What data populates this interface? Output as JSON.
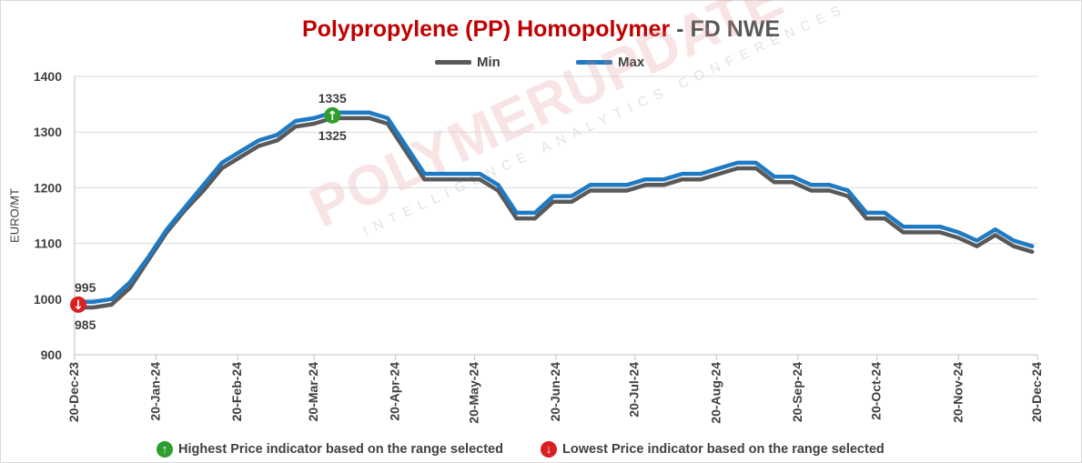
{
  "title": {
    "main": "Polypropylene (PP) Homopolymer",
    "separator": "-",
    "sub": "FD NWE"
  },
  "legend": {
    "min_label": "Min",
    "max_label": "Max"
  },
  "colors": {
    "min": "#595959",
    "max": "#1f7ac4",
    "title_main": "#c00000",
    "highest": "#2e9e2e",
    "lowest": "#d92020",
    "grid": "#d9d9d9"
  },
  "watermark": {
    "main": "POLYMERUPDATE",
    "registered": "®",
    "sub": "INTELLIGENCE   ANALYTICS   CONFERENCES"
  },
  "footer": {
    "highest_text": "Highest Price indicator based on the range selected",
    "lowest_text": "Lowest Price indicator based on the range selected",
    "highest_icon": "arrow-up-icon",
    "lowest_icon": "arrow-down-icon"
  },
  "chart_data": {
    "type": "line",
    "ylabel": "EURO/MT",
    "xlabel": "",
    "ylim": [
      900,
      1400
    ],
    "yticks": [
      900,
      1000,
      1100,
      1200,
      1300,
      1400
    ],
    "xlim": [
      "2023-12-20",
      "2024-12-20"
    ],
    "xtick_labels": [
      "20-Dec-23",
      "20-Jan-24",
      "20-Feb-24",
      "20-Mar-24",
      "20-Apr-24",
      "20-May-24",
      "20-Jun-24",
      "20-Jul-24",
      "20-Aug-24",
      "20-Sep-24",
      "20-Oct-24",
      "20-Nov-24",
      "20-Dec-24"
    ],
    "xtick_dates": [
      "2023-12-20",
      "2024-01-20",
      "2024-02-20",
      "2024-03-20",
      "2024-04-20",
      "2024-05-20",
      "2024-06-20",
      "2024-07-20",
      "2024-08-20",
      "2024-09-20",
      "2024-10-20",
      "2024-11-20",
      "2024-12-20"
    ],
    "grid": "horizontal",
    "legend_position": "top",
    "x": [
      "2023-12-20",
      "2023-12-27",
      "2024-01-03",
      "2024-01-10",
      "2024-01-17",
      "2024-01-24",
      "2024-01-31",
      "2024-02-07",
      "2024-02-14",
      "2024-02-21",
      "2024-02-28",
      "2024-03-06",
      "2024-03-13",
      "2024-03-20",
      "2024-03-27",
      "2024-04-03",
      "2024-04-10",
      "2024-04-17",
      "2024-04-24",
      "2024-05-01",
      "2024-05-08",
      "2024-05-15",
      "2024-05-22",
      "2024-05-29",
      "2024-06-05",
      "2024-06-12",
      "2024-06-19",
      "2024-06-26",
      "2024-07-03",
      "2024-07-10",
      "2024-07-17",
      "2024-07-24",
      "2024-07-31",
      "2024-08-07",
      "2024-08-14",
      "2024-08-21",
      "2024-08-28",
      "2024-09-04",
      "2024-09-11",
      "2024-09-18",
      "2024-09-25",
      "2024-10-02",
      "2024-10-09",
      "2024-10-16",
      "2024-10-23",
      "2024-10-30",
      "2024-11-06",
      "2024-11-13",
      "2024-11-20",
      "2024-11-27",
      "2024-12-04",
      "2024-12-11",
      "2024-12-18"
    ],
    "series": [
      {
        "name": "Min",
        "color": "#595959",
        "values": [
          985,
          985,
          990,
          1020,
          1070,
          1120,
          1160,
          1195,
          1235,
          1255,
          1275,
          1285,
          1310,
          1315,
          1325,
          1325,
          1325,
          1315,
          1265,
          1215,
          1215,
          1215,
          1215,
          1195,
          1145,
          1145,
          1175,
          1175,
          1195,
          1195,
          1195,
          1205,
          1205,
          1215,
          1215,
          1225,
          1235,
          1235,
          1210,
          1210,
          1195,
          1195,
          1185,
          1145,
          1145,
          1120,
          1120,
          1120,
          1110,
          1095,
          1115,
          1095,
          1085
        ]
      },
      {
        "name": "Max",
        "color": "#1f7ac4",
        "values": [
          995,
          995,
          1000,
          1030,
          1075,
          1125,
          1165,
          1205,
          1245,
          1265,
          1285,
          1295,
          1320,
          1325,
          1335,
          1335,
          1335,
          1325,
          1275,
          1225,
          1225,
          1225,
          1225,
          1205,
          1155,
          1155,
          1185,
          1185,
          1205,
          1205,
          1205,
          1215,
          1215,
          1225,
          1225,
          1235,
          1245,
          1245,
          1220,
          1220,
          1205,
          1205,
          1195,
          1155,
          1155,
          1130,
          1130,
          1130,
          1120,
          1105,
          1125,
          1105,
          1095
        ]
      }
    ],
    "annotations": [
      {
        "kind": "highest",
        "date": "2024-03-27",
        "value": 1335,
        "label": "1335",
        "lower_label": "1325"
      },
      {
        "kind": "lowest",
        "date": "2023-12-20",
        "value": 995,
        "label": "995",
        "lower_label": "985"
      }
    ]
  }
}
